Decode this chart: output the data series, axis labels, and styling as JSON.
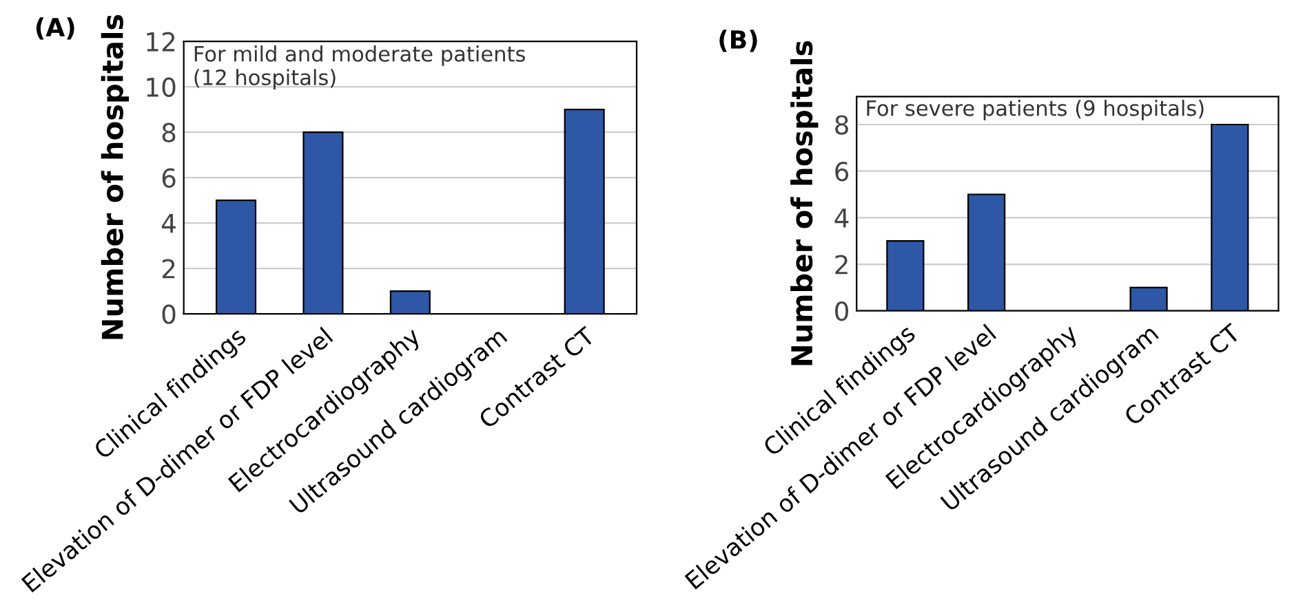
{
  "chart_data": [
    {
      "type": "bar",
      "title": "(A)",
      "ylabel": "Number of hospitals",
      "annotations": [
        "For mild and moderate patients\n(12 hospitals)"
      ],
      "categories": [
        "Clinical findings",
        "Elevation of D-dimer or FDP level",
        "Electrocardiography",
        "Ultrasound cardiogram",
        "Contrast CT"
      ],
      "values": [
        5,
        8,
        1,
        0,
        9
      ],
      "color": "#2e57a6",
      "ylim": [
        0,
        12
      ],
      "yticks": [
        0,
        2,
        4,
        6,
        8,
        10,
        12
      ],
      "grid": "y"
    },
    {
      "type": "bar",
      "title": "(B)",
      "ylabel": "Number of hospitals",
      "annotations": [
        "For severe patients (9 hospitals)"
      ],
      "categories": [
        "Clinical findings",
        "Elevation of D-dimer or FDP level",
        "Electrocardiography",
        "Ultrasound cardiogram",
        "Contrast CT"
      ],
      "values": [
        3,
        5,
        0,
        1,
        8
      ],
      "color": "#2e57a6",
      "ylim": [
        0,
        9.2
      ],
      "yticks": [
        0,
        2,
        4,
        6,
        8
      ],
      "grid": "y"
    }
  ]
}
